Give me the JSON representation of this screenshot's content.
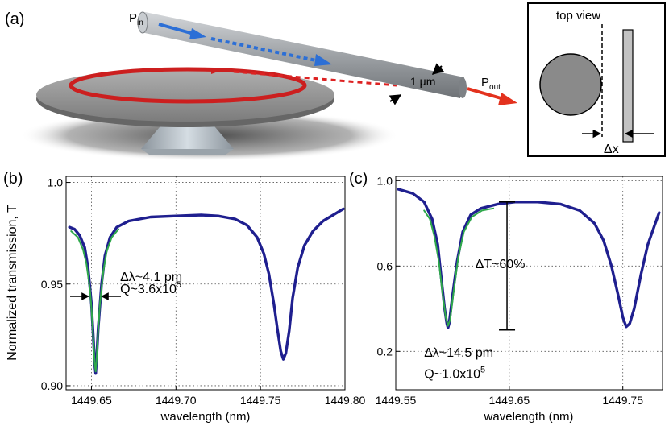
{
  "panel_a": {
    "label": "(a)",
    "p_in": "P",
    "p_in_sub": "in",
    "p_out": "P",
    "p_out_sub": "out",
    "fiber_diameter": "1 μm",
    "colors": {
      "disk": "#8c8c8c",
      "fiber": "#9a9ea2",
      "pedestal": "#b8c0c8",
      "mode_red": "#cc1f1f",
      "blue_arrow": "#2c6fd6",
      "shadow": "#3a3a3a"
    }
  },
  "inset": {
    "title": "top view",
    "delta_x": "Δx"
  },
  "chart_data": [
    {
      "type": "line",
      "panel_label": "(b)",
      "xlabel": "wavelength (nm)",
      "ylabel": "Normalized transmission, T",
      "xlim": [
        1449.635,
        1449.8
      ],
      "ylim": [
        0.898,
        1.003
      ],
      "xticks": [
        1449.65,
        1449.7,
        1449.75,
        1449.8
      ],
      "xtick_labels": [
        "1449.65",
        "1449.70",
        "1449.75",
        "1449.80"
      ],
      "yticks": [
        0.9,
        0.95,
        1.0
      ],
      "ytick_labels": [
        "0.90",
        "0.95",
        "1.0"
      ],
      "grid": true,
      "series": [
        {
          "color": "#1f1f8f",
          "points": [
            [
              1449.637,
              0.978
            ],
            [
              1449.64,
              0.977
            ],
            [
              1449.643,
              0.974
            ],
            [
              1449.646,
              0.968
            ],
            [
              1449.648,
              0.958
            ],
            [
              1449.65,
              0.94
            ],
            [
              1449.651,
              0.925
            ],
            [
              1449.652,
              0.91
            ],
            [
              1449.6525,
              0.906
            ],
            [
              1449.653,
              0.912
            ],
            [
              1449.654,
              0.928
            ],
            [
              1449.656,
              0.95
            ],
            [
              1449.658,
              0.964
            ],
            [
              1449.661,
              0.973
            ],
            [
              1449.665,
              0.978
            ],
            [
              1449.672,
              0.981
            ],
            [
              1449.685,
              0.983
            ],
            [
              1449.7,
              0.9835
            ],
            [
              1449.715,
              0.984
            ],
            [
              1449.725,
              0.9835
            ],
            [
              1449.735,
              0.982
            ],
            [
              1449.742,
              0.979
            ],
            [
              1449.748,
              0.973
            ],
            [
              1449.752,
              0.965
            ],
            [
              1449.755,
              0.955
            ],
            [
              1449.758,
              0.94
            ],
            [
              1449.76,
              0.928
            ],
            [
              1449.762,
              0.917
            ],
            [
              1449.7635,
              0.913
            ],
            [
              1449.765,
              0.916
            ],
            [
              1449.767,
              0.927
            ],
            [
              1449.769,
              0.943
            ],
            [
              1449.772,
              0.958
            ],
            [
              1449.776,
              0.969
            ],
            [
              1449.781,
              0.976
            ],
            [
              1449.787,
              0.981
            ],
            [
              1449.793,
              0.984
            ],
            [
              1449.799,
              0.987
            ]
          ]
        },
        {
          "color": "#2ea84a",
          "points": [
            [
              1449.638,
              0.976
            ],
            [
              1449.642,
              0.973
            ],
            [
              1449.645,
              0.967
            ],
            [
              1449.647,
              0.96
            ],
            [
              1449.649,
              0.948
            ],
            [
              1449.65,
              0.938
            ],
            [
              1449.651,
              0.924
            ],
            [
              1449.652,
              0.91
            ],
            [
              1449.6525,
              0.907
            ],
            [
              1449.653,
              0.912
            ],
            [
              1449.654,
              0.927
            ],
            [
              1449.655,
              0.94
            ],
            [
              1449.657,
              0.956
            ],
            [
              1449.659,
              0.966
            ],
            [
              1449.662,
              0.973
            ],
            [
              1449.666,
              0.977
            ]
          ]
        }
      ],
      "annotations": [
        {
          "text": "Δλ~4.1 pm",
          "x": 1449.667,
          "y": 0.9515
        },
        {
          "text": "Q~3.6x10",
          "sup": "5",
          "x": 1449.667,
          "y": 0.9455
        }
      ]
    },
    {
      "type": "line",
      "panel_label": "(c)",
      "xlabel": "wavelength (nm)",
      "ylabel": "",
      "xlim": [
        1449.55,
        1449.785
      ],
      "ylim": [
        0.02,
        1.02
      ],
      "xticks": [
        1449.55,
        1449.65,
        1449.75
      ],
      "xtick_labels": [
        "1449.55",
        "1449.65",
        "1449.75"
      ],
      "yticks": [
        0.2,
        0.6,
        1.0
      ],
      "ytick_labels": [
        "0.2",
        "0.6",
        "1.0"
      ],
      "grid": true,
      "series": [
        {
          "color": "#1f1f8f",
          "points": [
            [
              1449.552,
              0.96
            ],
            [
              1449.565,
              0.94
            ],
            [
              1449.575,
              0.9
            ],
            [
              1449.582,
              0.82
            ],
            [
              1449.587,
              0.7
            ],
            [
              1449.59,
              0.55
            ],
            [
              1449.593,
              0.4
            ],
            [
              1449.595,
              0.33
            ],
            [
              1449.596,
              0.31
            ],
            [
              1449.597,
              0.33
            ],
            [
              1449.6,
              0.46
            ],
            [
              1449.604,
              0.62
            ],
            [
              1449.609,
              0.76
            ],
            [
              1449.616,
              0.84
            ],
            [
              1449.625,
              0.87
            ],
            [
              1449.64,
              0.89
            ],
            [
              1449.655,
              0.9
            ],
            [
              1449.675,
              0.9
            ],
            [
              1449.695,
              0.89
            ],
            [
              1449.712,
              0.86
            ],
            [
              1449.725,
              0.8
            ],
            [
              1449.733,
              0.72
            ],
            [
              1449.74,
              0.6
            ],
            [
              1449.746,
              0.46
            ],
            [
              1449.75,
              0.36
            ],
            [
              1449.753,
              0.315
            ],
            [
              1449.756,
              0.33
            ],
            [
              1449.76,
              0.4
            ],
            [
              1449.766,
              0.56
            ],
            [
              1449.772,
              0.7
            ],
            [
              1449.778,
              0.79
            ],
            [
              1449.782,
              0.85
            ]
          ]
        },
        {
          "color": "#2ea84a",
          "points": [
            [
              1449.575,
              0.86
            ],
            [
              1449.58,
              0.82
            ],
            [
              1449.584,
              0.74
            ],
            [
              1449.588,
              0.62
            ],
            [
              1449.591,
              0.48
            ],
            [
              1449.594,
              0.36
            ],
            [
              1449.596,
              0.32
            ],
            [
              1449.598,
              0.35
            ],
            [
              1449.601,
              0.48
            ],
            [
              1449.605,
              0.64
            ],
            [
              1449.61,
              0.76
            ],
            [
              1449.617,
              0.83
            ],
            [
              1449.626,
              0.86
            ],
            [
              1449.636,
              0.87
            ]
          ]
        }
      ],
      "annotations": [
        {
          "text": "ΔT~60%",
          "x": 1449.62,
          "y": 0.59
        },
        {
          "text": "Δλ~14.5 pm",
          "x": 1449.575,
          "y": 0.175
        },
        {
          "text": "Q~1.0x10",
          "sup": "5",
          "x": 1449.575,
          "y": 0.075
        }
      ],
      "bracket": {
        "x": 1449.648,
        "y_top": 0.9,
        "y_bottom": 0.3
      }
    }
  ]
}
